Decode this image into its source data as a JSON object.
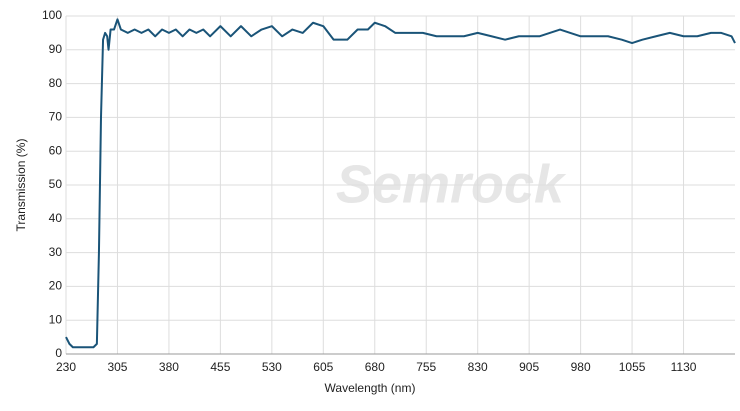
{
  "chart_data": {
    "type": "line",
    "x_label": "Wavelength (nm)",
    "y_label": "Transmission (%)",
    "watermark": "Semrock",
    "x": [
      230,
      235,
      240,
      260,
      270,
      275,
      278,
      281,
      284,
      287,
      290,
      292,
      295,
      300,
      305,
      310,
      320,
      330,
      340,
      350,
      360,
      370,
      380,
      390,
      400,
      410,
      420,
      430,
      440,
      455,
      470,
      485,
      500,
      515,
      530,
      545,
      560,
      575,
      590,
      605,
      620,
      640,
      655,
      670,
      680,
      695,
      710,
      730,
      750,
      770,
      790,
      810,
      830,
      850,
      870,
      890,
      905,
      920,
      935,
      950,
      965,
      980,
      1000,
      1020,
      1040,
      1055,
      1070,
      1090,
      1110,
      1130,
      1150,
      1170,
      1185,
      1200,
      1205
    ],
    "series": [
      {
        "name": "Transmission",
        "color": "#1a5478",
        "values": [
          5,
          3,
          2,
          2,
          2,
          3,
          30,
          70,
          93,
          95,
          94,
          90,
          96,
          96,
          99,
          96,
          95,
          96,
          95,
          96,
          94,
          96,
          95,
          96,
          94,
          96,
          95,
          96,
          94,
          97,
          94,
          97,
          94,
          96,
          97,
          94,
          96,
          95,
          98,
          97,
          93,
          93,
          96,
          96,
          98,
          97,
          95,
          95,
          95,
          94,
          94,
          94,
          95,
          94,
          93,
          94,
          94,
          94,
          95,
          96,
          95,
          94,
          94,
          94,
          93,
          92,
          93,
          94,
          95,
          94,
          94,
          95,
          95,
          94,
          92
        ]
      }
    ],
    "xlim": [
      230,
      1205
    ],
    "ylim": [
      0,
      100
    ],
    "xticks": [
      230,
      305,
      380,
      455,
      530,
      605,
      680,
      755,
      830,
      905,
      980,
      1055,
      1130
    ],
    "yticks": [
      0,
      10,
      20,
      30,
      40,
      50,
      60,
      70,
      80,
      90,
      100
    ],
    "grid": true
  }
}
